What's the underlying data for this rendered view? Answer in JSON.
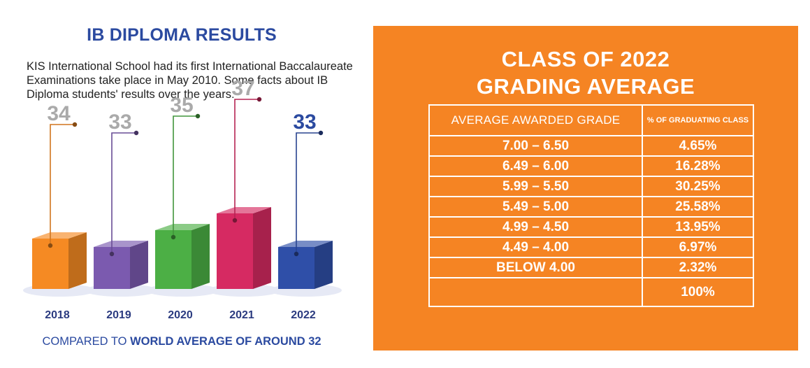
{
  "left": {
    "title": "IB DIPLOMA RESULTS",
    "intro": "KIS International School had its first International Baccalaureate Examinations take place in May 2010. Some facts about IB Diploma students' results over the years:",
    "footer_prefix": "COMPARED TO ",
    "footer_emphasis": "WORLD AVERAGE OF AROUND 32"
  },
  "chart_data": {
    "type": "bar",
    "title": "",
    "xlabel": "",
    "ylabel": "",
    "categories": [
      "2018",
      "2019",
      "2020",
      "2021",
      "2022"
    ],
    "values": [
      34,
      33,
      35,
      37,
      33
    ],
    "colors": [
      "#f58a23",
      "#7b5aaf",
      "#4caf45",
      "#d62a62",
      "#2f4fa8"
    ],
    "label_colors": [
      "#aaaaaa",
      "#aaaaaa",
      "#aaaaaa",
      "#aaaaaa",
      "#2b4aa0"
    ],
    "grid": false,
    "legend": "none"
  },
  "right": {
    "title_line1": "CLASS OF 2022",
    "title_line2": "GRADING AVERAGE",
    "background": "#f58423",
    "table": {
      "headers": [
        "AVERAGE AWARDED GRADE",
        "% OF GRADUATING CLASS"
      ],
      "rows": [
        [
          "7.00 – 6.50",
          "4.65%"
        ],
        [
          "6.49 – 6.00",
          "16.28%"
        ],
        [
          "5.99 – 5.50",
          "30.25%"
        ],
        [
          "5.49 – 5.00",
          "25.58%"
        ],
        [
          "4.99 – 4.50",
          "13.95%"
        ],
        [
          "4.49 – 4.00",
          "6.97%"
        ],
        [
          "BELOW 4.00",
          "2.32%"
        ]
      ],
      "total": [
        "",
        "100%"
      ]
    }
  }
}
